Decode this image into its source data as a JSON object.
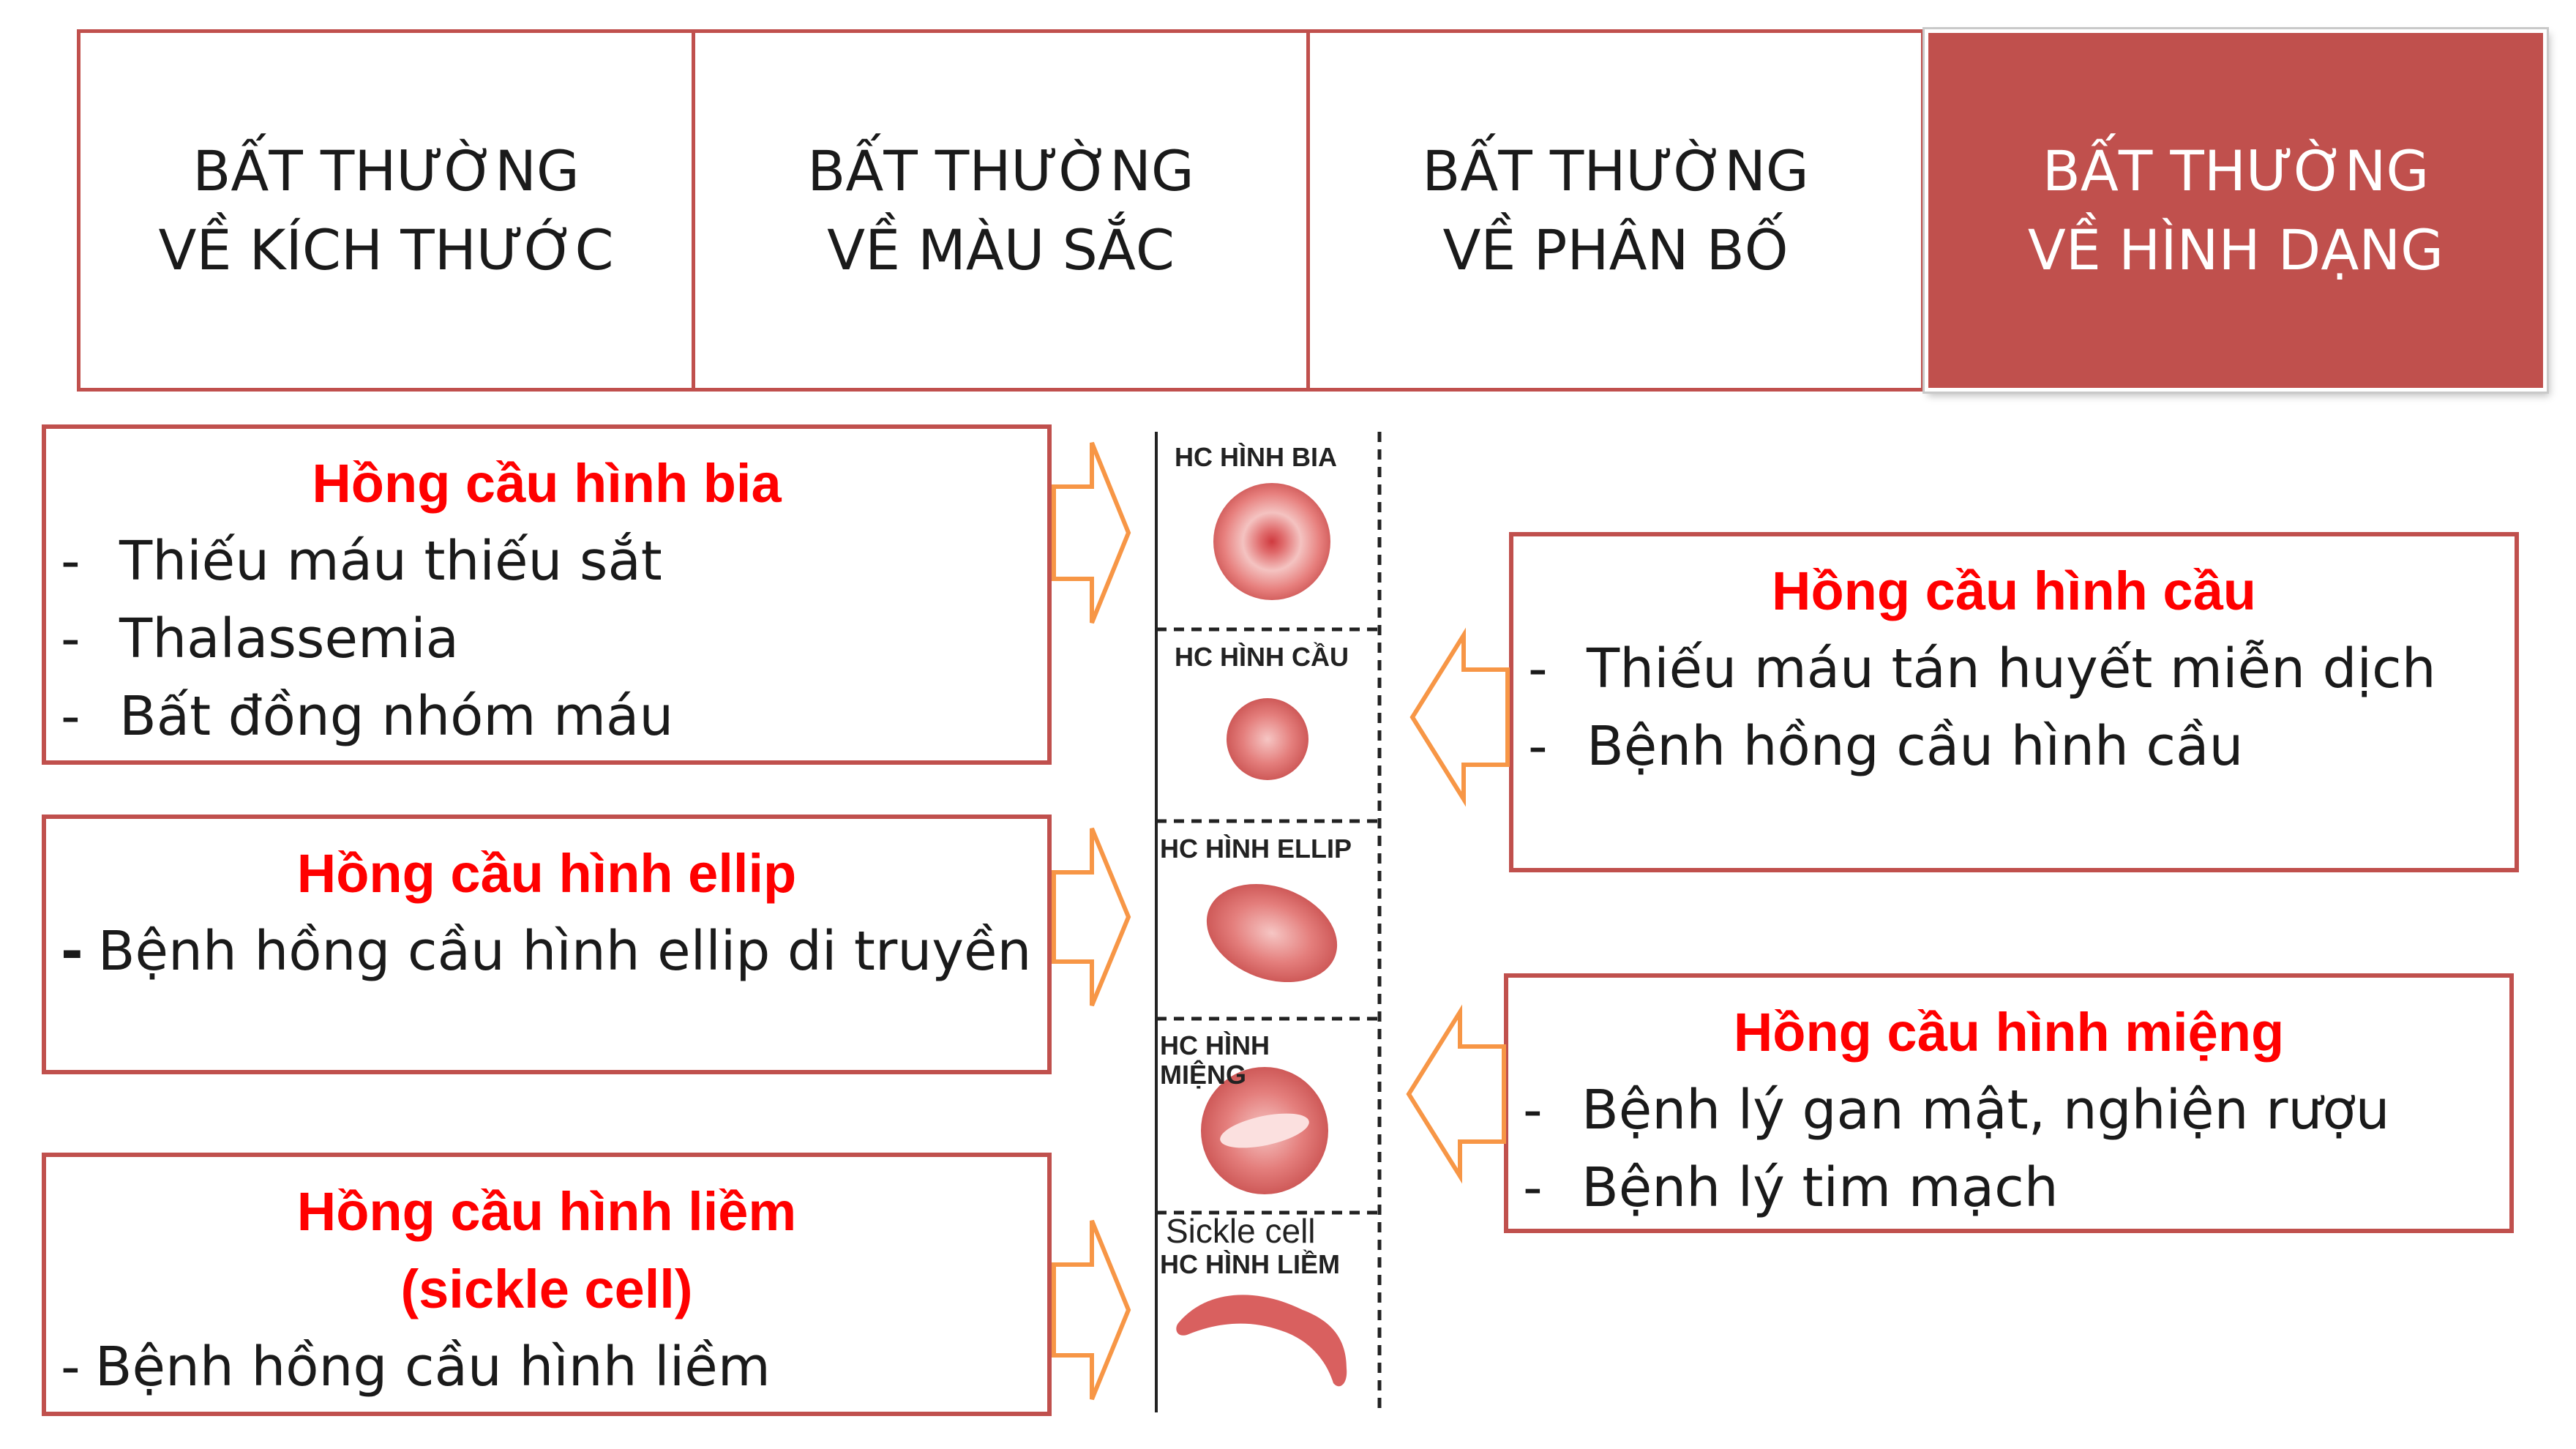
{
  "tabs": [
    {
      "line1": "BẤT THƯỜNG",
      "line2": "VỀ KÍCH THƯỚC",
      "active": false
    },
    {
      "line1": "BẤT THƯỜNG",
      "line2": "VỀ MÀU SẮC",
      "active": false
    },
    {
      "line1": "BẤT THƯỜNG",
      "line2": "VỀ PHÂN BỐ",
      "active": false
    },
    {
      "line1": "BẤT THƯỜNG",
      "line2": "VỀ HÌNH DẠNG",
      "active": true
    }
  ],
  "cards": {
    "target": {
      "title": "Hồng cầu hình bia",
      "items": [
        "Thiếu máu thiếu sắt",
        "Thalassemia",
        "Bất đồng nhóm máu"
      ]
    },
    "ellip": {
      "title": "Hồng cầu hình ellip",
      "items": [
        "Bệnh hồng cầu hình ellip di truyền"
      ]
    },
    "sickle": {
      "title_line1": "Hồng cầu hình liềm",
      "title_line2": "(sickle cell)",
      "items": [
        "Bệnh hồng cầu hình liềm"
      ]
    },
    "sphere": {
      "title": "Hồng cầu hình cầu",
      "items": [
        "Thiếu máu tán huyết miễn dịch",
        "Bệnh hồng cầu hình cầu"
      ]
    },
    "stomato": {
      "title": "Hồng cầu hình miệng",
      "items": [
        "Bệnh lý gan mật, nghiện rượu",
        "Bệnh lý tim mạch"
      ]
    }
  },
  "strip": {
    "labels": {
      "bia": "HC HÌNH BIA",
      "cau": "HC HÌNH CẦU",
      "ellip": "HC HÌNH ELLIP",
      "mieng1": "HC HÌNH",
      "mieng2": "MIỆNG",
      "sickle_en": "Sickle cell",
      "liem": "HC HÌNH LIỀM"
    }
  },
  "colors": {
    "accent": "#c0504d",
    "title_red": "#ff0000",
    "arrow": "#f79646",
    "cell": "#d9605f"
  }
}
